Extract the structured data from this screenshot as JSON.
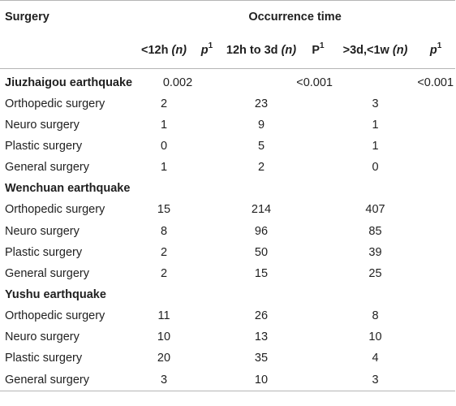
{
  "header": {
    "surgery": "Surgery",
    "occurrence_time": "Occurrence time",
    "columns": [
      {
        "main": "<12h ",
        "italic": "(n)",
        "sup": "",
        "pre": "",
        "post": ""
      },
      {
        "main": "",
        "italic": "p",
        "sup": "1"
      },
      {
        "main": "12h to 3d ",
        "italic": "(n)",
        "sup": ""
      },
      {
        "main": "P",
        "italic": "",
        "sup": "1"
      },
      {
        "main": ">3d,<1w ",
        "italic": "(n)",
        "sup": ""
      },
      {
        "main": "",
        "italic": "p",
        "sup": "1"
      }
    ]
  },
  "groups": [
    {
      "name": "Jiuzhaigou earthquake",
      "p_values": [
        "0.002",
        "<0.001",
        "<0.001"
      ],
      "rows": [
        {
          "label": "Orthopedic surgery",
          "v1": "2",
          "v2": "23",
          "v3": "3"
        },
        {
          "label": "Neuro surgery",
          "v1": "1",
          "v2": "9",
          "v3": "1"
        },
        {
          "label": "Plastic surgery",
          "v1": "0",
          "v2": "5",
          "v3": "1"
        },
        {
          "label": "General surgery",
          "v1": "1",
          "v2": "2",
          "v3": "0"
        }
      ]
    },
    {
      "name": "Wenchuan earthquake",
      "p_values": [
        "",
        "",
        ""
      ],
      "rows": [
        {
          "label": "Orthopedic surgery",
          "v1": "15",
          "v2": "214",
          "v3": "407"
        },
        {
          "label": "Neuro surgery",
          "v1": "8",
          "v2": "96",
          "v3": "85"
        },
        {
          "label": "Plastic surgery",
          "v1": "2",
          "v2": "50",
          "v3": "39"
        },
        {
          "label": "General surgery",
          "v1": "2",
          "v2": "15",
          "v3": "25"
        }
      ]
    },
    {
      "name": "Yushu earthquake",
      "p_values": [
        "",
        "",
        ""
      ],
      "rows": [
        {
          "label": "Orthopedic surgery",
          "v1": "11",
          "v2": "26",
          "v3": "8"
        },
        {
          "label": "Neuro surgery",
          "v1": "10",
          "v2": "13",
          "v3": "10"
        },
        {
          "label": "Plastic surgery",
          "v1": "20",
          "v2": "35",
          "v3": "4"
        },
        {
          "label": "General surgery",
          "v1": "3",
          "v2": "10",
          "v3": "3"
        }
      ]
    }
  ]
}
